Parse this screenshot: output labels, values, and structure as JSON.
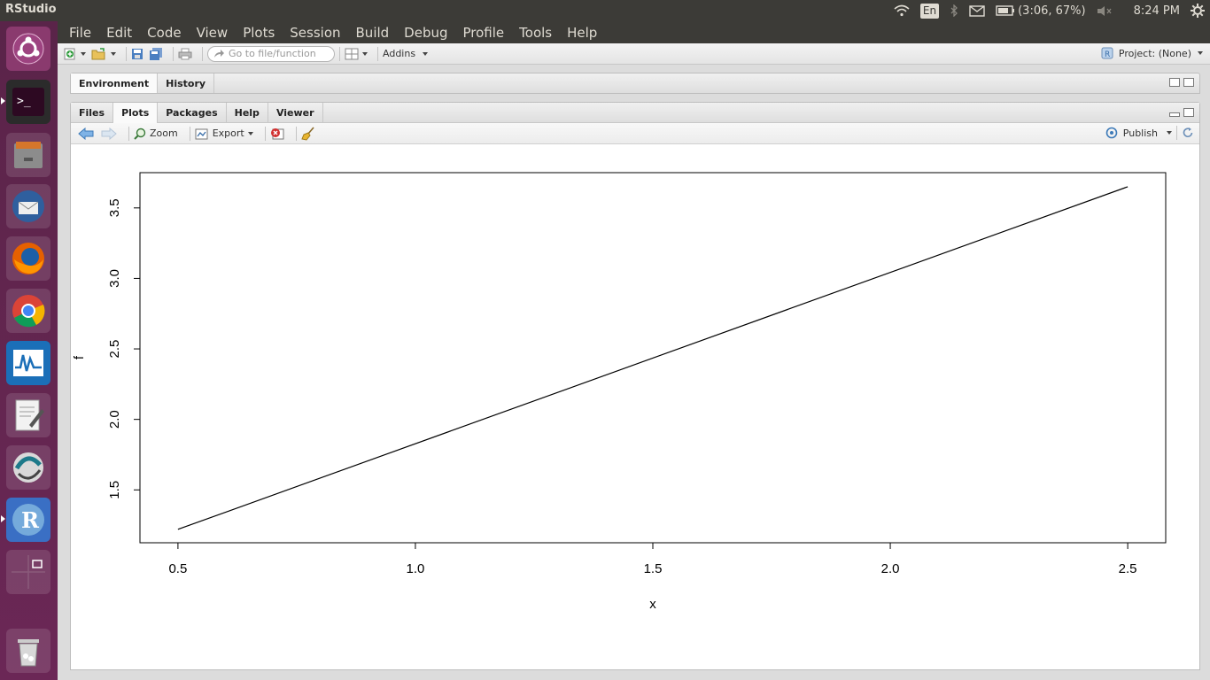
{
  "top_panel": {
    "app_title": "RStudio",
    "keyboard": "En",
    "battery": "(3:06, 67%)",
    "clock": "8:24 PM"
  },
  "menu": [
    "File",
    "Edit",
    "Code",
    "View",
    "Plots",
    "Session",
    "Build",
    "Debug",
    "Profile",
    "Tools",
    "Help"
  ],
  "toolbar": {
    "goto_placeholder": "Go to file/function",
    "addins_label": "Addins",
    "project_label": "Project: (None)"
  },
  "env_pane": {
    "tabs": [
      "Environment",
      "History"
    ]
  },
  "plots_pane": {
    "tabs": [
      "Files",
      "Plots",
      "Packages",
      "Help",
      "Viewer"
    ],
    "zoom_label": "Zoom",
    "export_label": "Export",
    "publish_label": "Publish"
  },
  "chart_data": {
    "type": "line",
    "x": [
      0.5,
      2.5
    ],
    "y": [
      1.22,
      3.65
    ],
    "xlabel": "x",
    "ylabel": "f",
    "xticks": [
      "0.5",
      "1.0",
      "1.5",
      "2.0",
      "2.5"
    ],
    "yticks": [
      "1.5",
      "2.0",
      "2.5",
      "3.0",
      "3.5"
    ],
    "xlim": [
      0.42,
      2.58
    ],
    "ylim": [
      1.125,
      3.75
    ],
    "grid": false
  }
}
